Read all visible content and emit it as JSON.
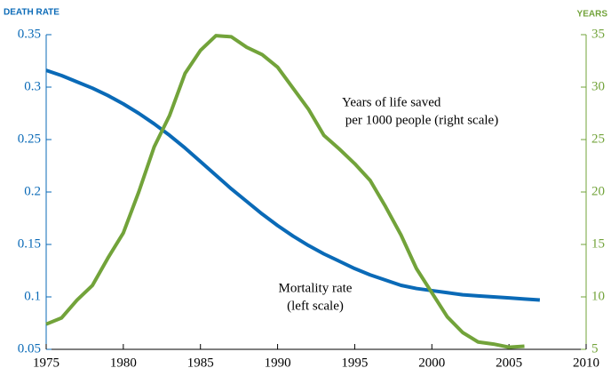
{
  "chart_data": {
    "type": "line",
    "y_label": "DEATH RATE",
    "y2_label": "YEARS",
    "x": [
      1975,
      1976,
      1977,
      1978,
      1979,
      1980,
      1981,
      1982,
      1983,
      1984,
      1985,
      1986,
      1987,
      1988,
      1989,
      1990,
      1991,
      1992,
      1993,
      1994,
      1995,
      1996,
      1997,
      1998,
      1999,
      2000,
      2001,
      2002,
      2003,
      2004,
      2005,
      2006,
      2007
    ],
    "series": [
      {
        "name": "Mortality rate",
        "color": "#0a6ab7",
        "values": [
          0.316,
          0.311,
          0.305,
          0.299,
          0.292,
          0.284,
          0.275,
          0.265,
          0.254,
          0.242,
          0.229,
          0.216,
          0.203,
          0.191,
          0.179,
          0.168,
          0.158,
          0.149,
          0.141,
          0.134,
          0.127,
          0.121,
          0.116,
          0.111,
          0.108,
          0.106,
          0.104,
          0.102,
          0.101,
          0.1,
          0.099,
          0.098,
          0.097
        ]
      },
      {
        "name": "Years of life saved",
        "color": "#72a33a",
        "axis": "y2",
        "values": [
          7.4,
          8.0,
          9.7,
          11.1,
          13.7,
          16.1,
          20.0,
          24.3,
          27.3,
          31.3,
          33.5,
          34.9,
          34.8,
          33.8,
          33.1,
          31.9,
          29.9,
          27.9,
          25.4,
          24.1,
          22.7,
          21.1,
          18.6,
          15.9,
          12.7,
          10.4,
          8.1,
          6.6,
          5.7,
          5.5,
          5.2,
          5.3,
          null
        ]
      }
    ],
    "annotations": [
      {
        "lines": [
          "Years of life saved",
          " per 1000 people (right scale)"
        ]
      },
      {
        "lines": [
          "Mortality rate",
          "(left scale)"
        ]
      }
    ],
    "xlim": [
      1975,
      2010
    ],
    "xticks": [
      1975,
      1980,
      1985,
      1990,
      1995,
      2000,
      2005,
      2010
    ],
    "ylim": [
      0.05,
      0.35
    ],
    "yticks": [
      0.05,
      0.1,
      0.15,
      0.2,
      0.25,
      0.3,
      0.35
    ],
    "y2lim": [
      5,
      35
    ],
    "y2ticks": [
      5,
      10,
      15,
      20,
      25,
      30,
      35
    ]
  }
}
